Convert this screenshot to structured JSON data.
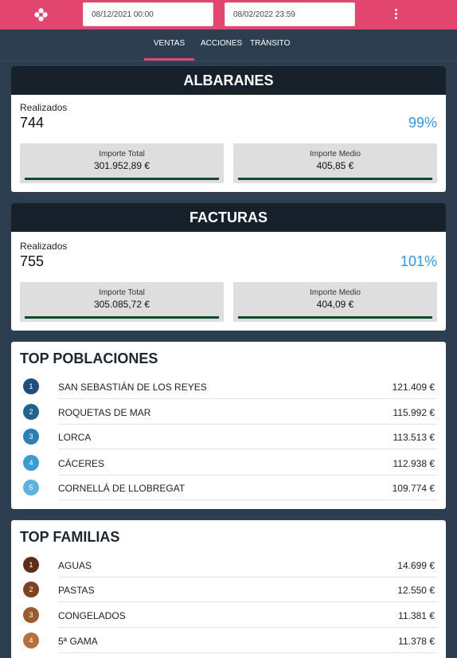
{
  "header": {
    "logo_icon": "flower-logo-icon",
    "date_from": "08/12/2021 00:00",
    "date_to": "08/02/2022 23:59",
    "menu_icon": "more-vertical-icon",
    "accent": "#e2456d"
  },
  "tabs": [
    {
      "label": "VENTAS",
      "active": true
    },
    {
      "label": "ACCIONES",
      "active": false
    },
    {
      "label": "TRÁNSITO",
      "active": false
    }
  ],
  "albaranes": {
    "title": "ALBARANES",
    "realizados_label": "Realizados",
    "realizados_value": "744",
    "percent": "99%",
    "importe_total_label": "Importe Total",
    "importe_total_value": "301.952,89 €",
    "importe_medio_label": "Importe Medio",
    "importe_medio_value": "405,85 €"
  },
  "facturas": {
    "title": "FACTURAS",
    "realizados_label": "Realizados",
    "realizados_value": "755",
    "percent": "101%",
    "importe_total_label": "Importe Total",
    "importe_total_value": "305.085,72 €",
    "importe_medio_label": "Importe Medio",
    "importe_medio_value": "404,09 €"
  },
  "top_poblaciones": {
    "title": "TOP POBLACIONES",
    "items": [
      {
        "rank": "1",
        "name": "SAN SEBASTIÁN DE LOS REYES",
        "value": "121.409 €",
        "color": "#1f4e79"
      },
      {
        "rank": "2",
        "name": "ROQUETAS DE MAR",
        "value": "115.992 €",
        "color": "#22628f"
      },
      {
        "rank": "3",
        "name": "LORCA",
        "value": "113.513 €",
        "color": "#2c7fb5"
      },
      {
        "rank": "4",
        "name": "CÁCERES",
        "value": "112.938 €",
        "color": "#3b9bd6"
      },
      {
        "rank": "5",
        "name": "CORNELLÁ DE LLOBREGAT",
        "value": "109.774 €",
        "color": "#5fb1e0"
      }
    ]
  },
  "top_familias": {
    "title": "TOP FAMILIAS",
    "items": [
      {
        "rank": "1",
        "name": "AGUAS",
        "value": "14.699 €",
        "color": "#5e2f16"
      },
      {
        "rank": "2",
        "name": "PASTAS",
        "value": "12.550 €",
        "color": "#7e4220"
      },
      {
        "rank": "3",
        "name": "CONGELADOS",
        "value": "11.381 €",
        "color": "#9b5a30"
      },
      {
        "rank": "4",
        "name": "5ª GAMA",
        "value": "11.378 €",
        "color": "#b66f3f"
      }
    ]
  }
}
